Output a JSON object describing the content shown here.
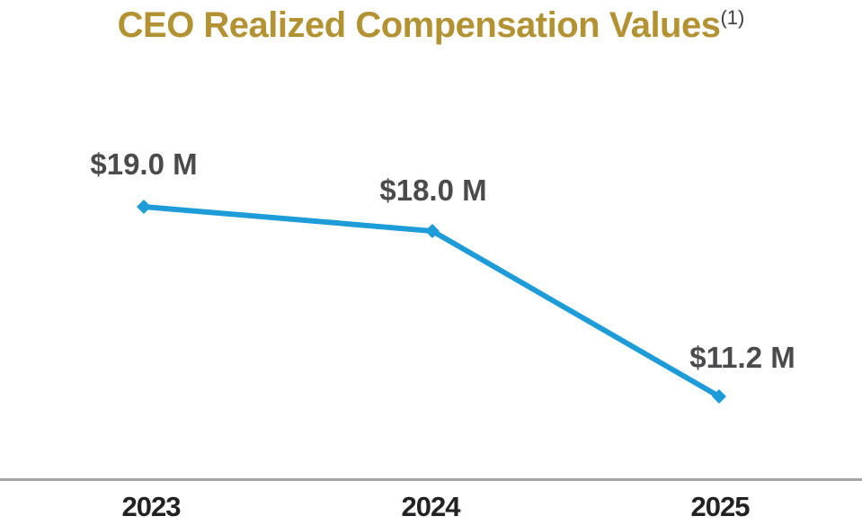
{
  "title": {
    "text": "CEO Realized Compensation Values",
    "superscript": "(1)"
  },
  "chart_data": {
    "type": "line",
    "title": "CEO Realized Compensation Values(1)",
    "categories": [
      "2023",
      "2024",
      "2025"
    ],
    "values": [
      19.0,
      18.0,
      11.2
    ],
    "point_labels": [
      "$19.0 M",
      "$18.0 M",
      "$11.2 M"
    ],
    "unit": "$M",
    "xlabel": "",
    "ylabel": "",
    "grid": false,
    "legend": false,
    "marker": "diamond",
    "line_color": "#1E9CD8",
    "point_label_color": "#4B4B4D",
    "category_label_color": "#222224",
    "axis_line_color": "#A5A6A8",
    "title_color": "#B29232",
    "footnote_color": "#404042"
  }
}
